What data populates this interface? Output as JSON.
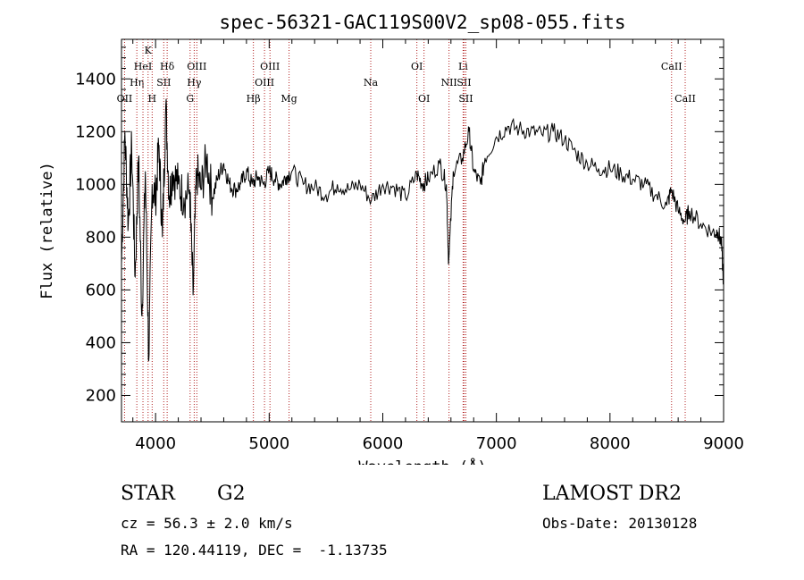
{
  "chart_data": {
    "type": "line",
    "title": "spec-56321-GAC119S00V2_sp08-055.fits",
    "xlabel": "Wavelength (Å)",
    "ylabel": "Flux (relative)",
    "xlim": [
      3700,
      9000
    ],
    "ylim": [
      100,
      1550
    ],
    "xticks": [
      4000,
      5000,
      6000,
      7000,
      8000,
      9000
    ],
    "yticks": [
      200,
      400,
      600,
      800,
      1000,
      1200,
      1400
    ],
    "grid": false,
    "line_color": "#000000",
    "marker_color": "#b22222",
    "series": [
      {
        "values_x": [
          3700,
          3730,
          3760,
          3790,
          3820,
          3850,
          3880,
          3910,
          3940,
          3970,
          4000,
          4030,
          4060,
          4090,
          4120,
          4150,
          4200,
          4250,
          4300,
          4330,
          4360,
          4400,
          4450,
          4500,
          4550,
          4600,
          4650,
          4700,
          4750,
          4800,
          4850,
          4900,
          4950,
          5000,
          5050,
          5100,
          5150,
          5200,
          5300,
          5400,
          5500,
          5600,
          5700,
          5800,
          5900,
          6000,
          6100,
          6200,
          6300,
          6350,
          6400,
          6500,
          6560,
          6580,
          6620,
          6700,
          6760,
          6800,
          6860,
          6900,
          7000,
          7100,
          7200,
          7300,
          7400,
          7500,
          7600,
          7700,
          7800,
          7900,
          8000,
          8100,
          8200,
          8300,
          8400,
          8500,
          8540,
          8600,
          8660,
          8700,
          8800,
          8900,
          8950,
          8980,
          9000
        ],
        "values_y": [
          700,
          1200,
          850,
          1150,
          650,
          1100,
          500,
          1050,
          330,
          1000,
          950,
          1150,
          800,
          1300,
          950,
          1050,
          1000,
          950,
          980,
          580,
          1050,
          980,
          1100,
          950,
          1030,
          1080,
          1000,
          980,
          1000,
          1050,
          1000,
          1030,
          1000,
          1050,
          1020,
          1000,
          1030,
          1050,
          1000,
          990,
          960,
          1000,
          980,
          1000,
          940,
          1000,
          990,
          950,
          1040,
          1000,
          1020,
          1080,
          1000,
          700,
          1050,
          1100,
          1200,
          1050,
          1000,
          1100,
          1180,
          1220,
          1210,
          1200,
          1190,
          1200,
          1170,
          1120,
          1080,
          1060,
          1060,
          1040,
          1020,
          1000,
          960,
          920,
          980,
          900,
          860,
          900,
          850,
          820,
          820,
          780,
          620
        ]
      }
    ],
    "lines": [
      {
        "wavelength": 3727,
        "label": "OII",
        "row": 3
      },
      {
        "wavelength": 3835,
        "label": "Hη",
        "row": 2
      },
      {
        "wavelength": 3889,
        "label": "HeI",
        "row": 1
      },
      {
        "wavelength": 3934,
        "label": "K",
        "row": 0
      },
      {
        "wavelength": 3970,
        "label": "H",
        "row": 3
      },
      {
        "wavelength": 4072,
        "label": "SII",
        "row": 2
      },
      {
        "wavelength": 4102,
        "label": "Hδ",
        "row": 1
      },
      {
        "wavelength": 4304,
        "label": "G",
        "row": 3
      },
      {
        "wavelength": 4340,
        "label": "Hγ",
        "row": 2
      },
      {
        "wavelength": 4363,
        "label": "OIII",
        "row": 1
      },
      {
        "wavelength": 4861,
        "label": "Hβ",
        "row": 3
      },
      {
        "wavelength": 4959,
        "label": "OIII",
        "row": 2
      },
      {
        "wavelength": 5007,
        "label": "OIII",
        "row": 1
      },
      {
        "wavelength": 5175,
        "label": "Mg",
        "row": 3
      },
      {
        "wavelength": 5894,
        "label": "Na",
        "row": 2
      },
      {
        "wavelength": 6300,
        "label": "OI",
        "row": 1
      },
      {
        "wavelength": 6363,
        "label": "OI",
        "row": 3
      },
      {
        "wavelength": 6583,
        "label": "NII",
        "row": 2
      },
      {
        "wavelength": 6707,
        "label": "Li",
        "row": 1
      },
      {
        "wavelength": 6716,
        "label": "SII",
        "row": 2
      },
      {
        "wavelength": 6731,
        "label": "SII",
        "row": 3
      },
      {
        "wavelength": 8542,
        "label": "CaII",
        "row": 1
      },
      {
        "wavelength": 8662,
        "label": "CaII",
        "row": 3
      }
    ]
  },
  "info": {
    "object_type": "STAR",
    "subclass": "G2",
    "survey": "LAMOST DR2",
    "redshift": "cz = 56.3 ± 2.0 km/s",
    "obs_date": "Obs-Date: 20130128",
    "coords": "RA = 120.44119, DEC =  -1.13735"
  }
}
